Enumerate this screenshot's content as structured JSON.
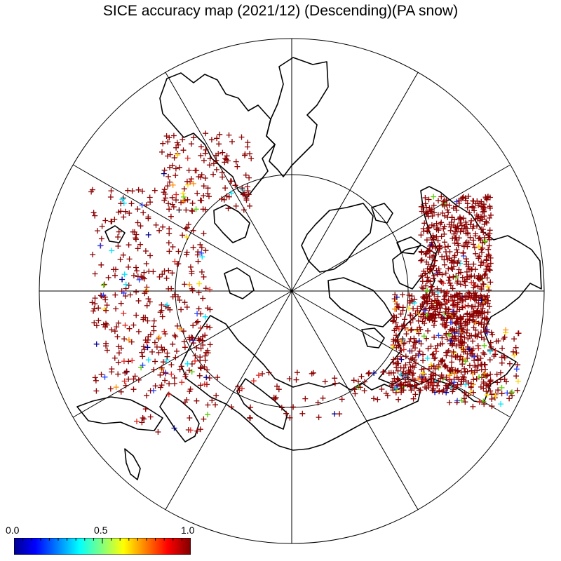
{
  "title": "SICE accuracy map (2021/12) (Descending)(PA snow)",
  "colorbar": {
    "min_label": "0.0",
    "mid_label": "0.5",
    "max_label": "1.0",
    "range": [
      0.0,
      1.0
    ],
    "colormap": "jet",
    "colors": [
      "#00008f",
      "#0000ff",
      "#00ffff",
      "#ffff00",
      "#ff0000",
      "#800000"
    ]
  },
  "map": {
    "projection": "north-polar-stereographic",
    "graticule_meridians_count": 12,
    "latitude_circle_deg": 60,
    "marker": "+",
    "colors": {
      "coastline": "#000000",
      "grid": "#000000",
      "high": "#8b0000",
      "red": "#e0201a",
      "orange": "#ff8c00",
      "yellow": "#ffd700",
      "green": "#55d000",
      "cyan": "#00e5ff",
      "blue": "#2040ff",
      "navy": "#00008b"
    }
  }
}
